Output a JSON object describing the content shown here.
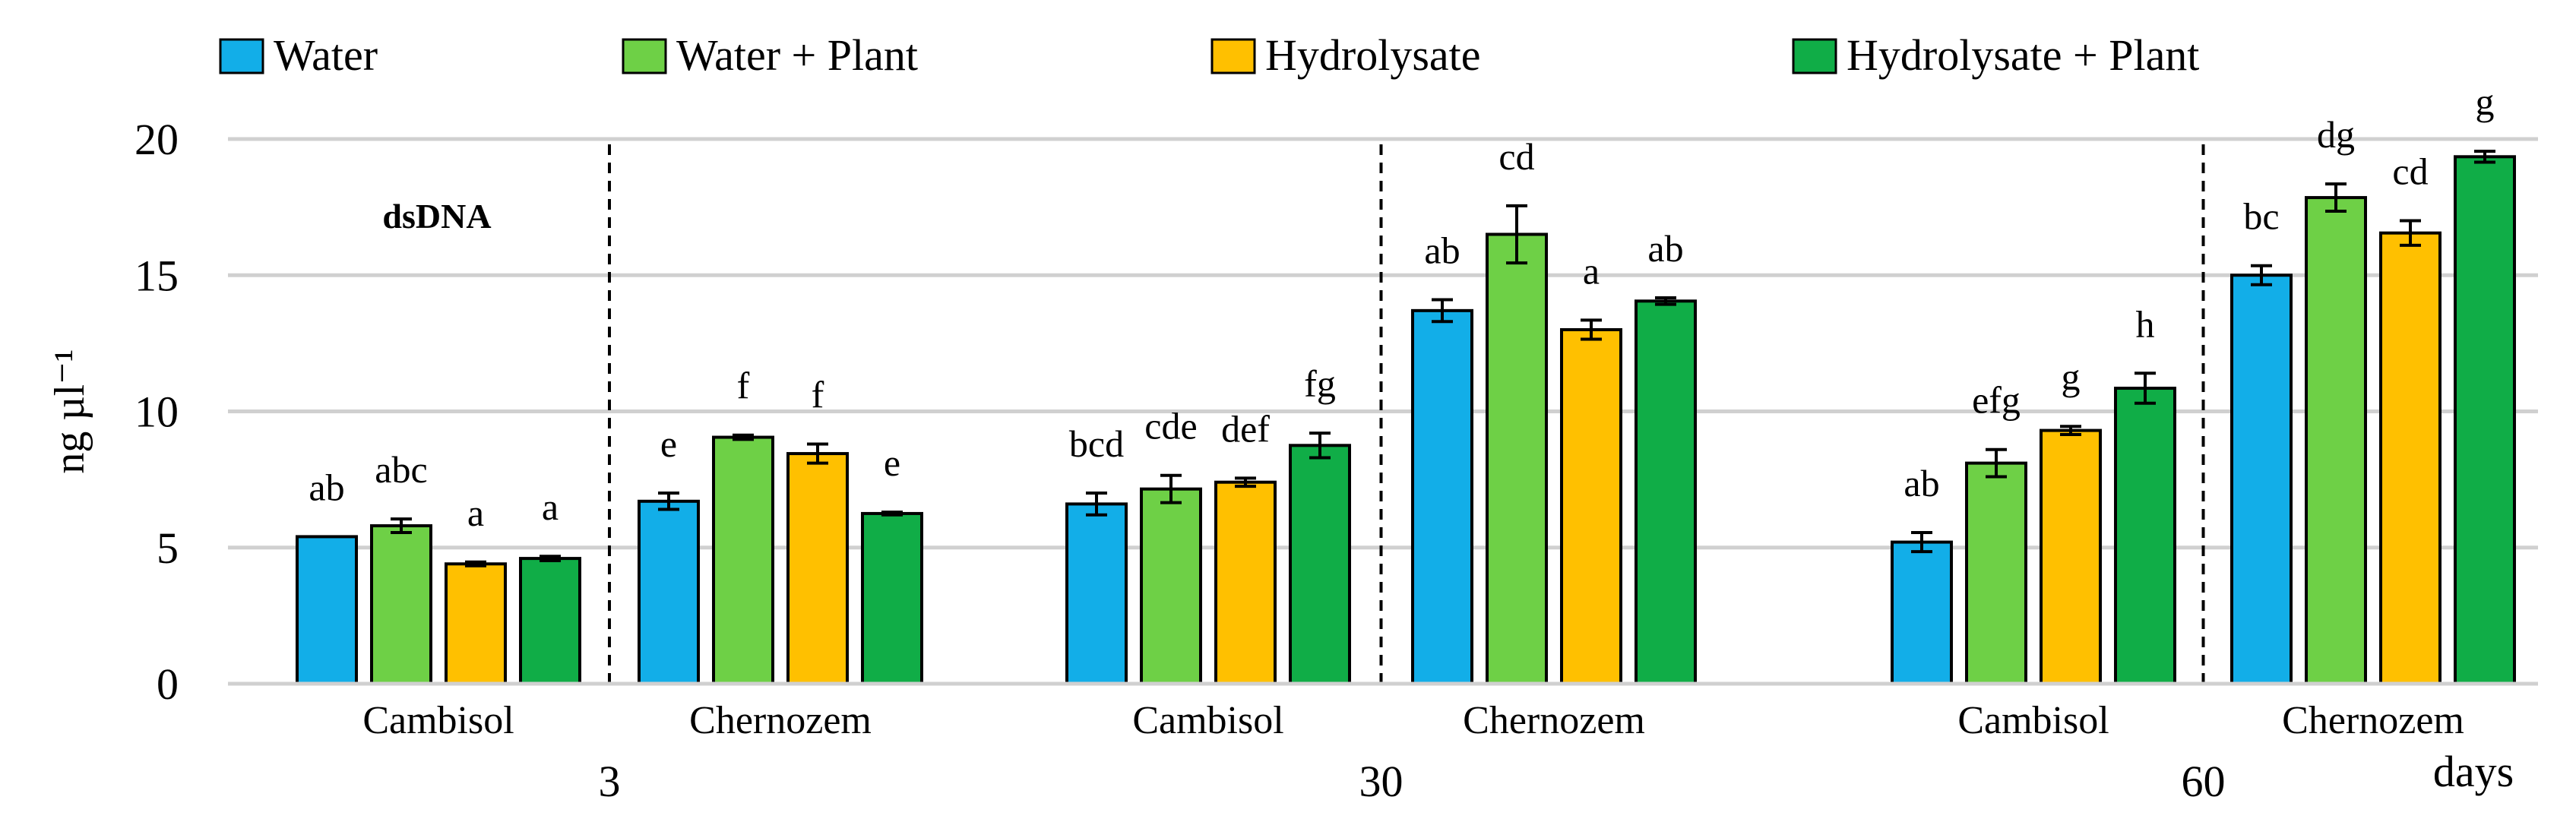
{
  "chart_data": {
    "type": "bar",
    "title": "dsDNA",
    "ylabel": "ng µl⁻¹",
    "xlabel": "days",
    "ylim": [
      0,
      20
    ],
    "yticks": [
      0,
      5,
      10,
      15,
      20
    ],
    "grid": true,
    "legend_position": "top",
    "series_names": [
      "Water",
      "Water + Plant",
      "Hydrolysate",
      "Hydrolysate + Plant"
    ],
    "colors": [
      "#12aee8",
      "#6ed046",
      "#ffc000",
      "#10ad47"
    ],
    "groups": [
      {
        "time": "3",
        "soils": [
          {
            "soil": "Cambisol",
            "values": [
              5.4,
              5.8,
              4.4,
              4.6
            ],
            "errors": [
              0.0,
              0.25,
              0.07,
              0.08
            ],
            "letters": [
              "ab",
              "abc",
              "a",
              "a"
            ]
          },
          {
            "soil": "Chernozem",
            "values": [
              6.7,
              9.05,
              8.45,
              6.25
            ],
            "errors": [
              0.3,
              0.08,
              0.35,
              0.05
            ],
            "letters": [
              "e",
              "f",
              "f",
              "e"
            ]
          }
        ]
      },
      {
        "time": "30",
        "soils": [
          {
            "soil": "Cambisol",
            "values": [
              6.6,
              7.15,
              7.4,
              8.75
            ],
            "errors": [
              0.4,
              0.5,
              0.15,
              0.45
            ],
            "letters": [
              "bcd",
              "cde",
              "def",
              "fg"
            ]
          },
          {
            "soil": "Chernozem",
            "values": [
              13.7,
              16.5,
              13.0,
              14.05
            ],
            "errors": [
              0.4,
              1.05,
              0.35,
              0.12
            ],
            "letters": [
              "ab",
              "cd",
              "a",
              "ab"
            ]
          }
        ]
      },
      {
        "time": "60",
        "soils": [
          {
            "soil": "Cambisol",
            "values": [
              5.2,
              8.1,
              9.3,
              10.85
            ],
            "errors": [
              0.35,
              0.5,
              0.15,
              0.55
            ],
            "letters": [
              "ab",
              "efg",
              "g",
              "h"
            ]
          },
          {
            "soil": "Chernozem",
            "values": [
              15.0,
              17.85,
              16.55,
              19.35
            ],
            "errors": [
              0.35,
              0.5,
              0.45,
              0.2
            ],
            "letters": [
              "bc",
              "dg",
              "cd",
              "g"
            ]
          }
        ]
      }
    ]
  }
}
